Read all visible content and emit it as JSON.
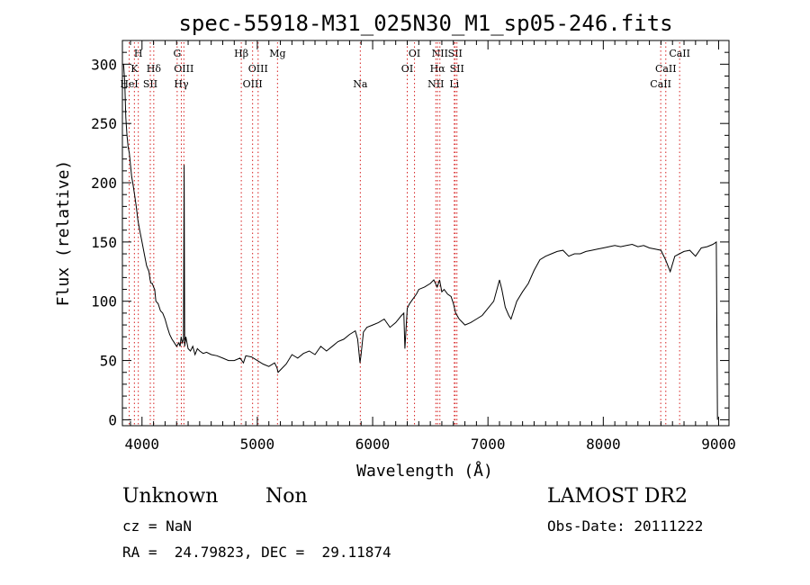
{
  "chart_data": {
    "type": "line",
    "title": "spec-55918-M31_025N30_M1_sp05-246.fits",
    "xlabel": "Wavelength (Å)",
    "ylabel": "Flux (relative)",
    "xlim": [
      3830,
      9090
    ],
    "ylim": [
      -5,
      320
    ],
    "xticks": [
      4000,
      5000,
      6000,
      7000,
      8000,
      9000
    ],
    "yticks": [
      0,
      50,
      100,
      150,
      200,
      250,
      300
    ],
    "grid": false,
    "series": [
      {
        "x": [
          3840,
          3850,
          3860,
          3870,
          3880,
          3890,
          3900,
          3910,
          3920,
          3935,
          3950,
          3965,
          3980,
          4000,
          4020,
          4040,
          4060,
          4070,
          4080,
          4090,
          4100,
          4110,
          4120,
          4140,
          4160,
          4180,
          4200,
          4220,
          4240,
          4260,
          4280,
          4300,
          4320,
          4330,
          4340,
          4350,
          4360,
          4365,
          4370,
          4380,
          4400,
          4420,
          4440,
          4460,
          4480,
          4500,
          4530,
          4560,
          4600,
          4650,
          4700,
          4750,
          4800,
          4850,
          4880,
          4900,
          4950,
          5000,
          5050,
          5100,
          5150,
          5170,
          5180,
          5200,
          5250,
          5300,
          5350,
          5400,
          5450,
          5500,
          5550,
          5600,
          5650,
          5700,
          5750,
          5800,
          5850,
          5870,
          5890,
          5900,
          5920,
          5950,
          6000,
          6050,
          6100,
          6150,
          6200,
          6250,
          6270,
          6280,
          6300,
          6320,
          6350,
          6380,
          6400,
          6450,
          6500,
          6530,
          6560,
          6580,
          6600,
          6620,
          6650,
          6680,
          6700,
          6720,
          6750,
          6780,
          6800,
          6850,
          6900,
          6950,
          7000,
          7050,
          7100,
          7120,
          7150,
          7180,
          7200,
          7250,
          7300,
          7350,
          7400,
          7450,
          7500,
          7550,
          7600,
          7650,
          7700,
          7750,
          7800,
          7850,
          7900,
          7950,
          8000,
          8050,
          8100,
          8150,
          8200,
          8250,
          8300,
          8350,
          8400,
          8450,
          8500,
          8540,
          8580,
          8620,
          8660,
          8700,
          8750,
          8800,
          8850,
          8900,
          8950,
          8980,
          8990
        ],
        "y": [
          300,
          285,
          255,
          240,
          230,
          225,
          215,
          205,
          200,
          190,
          180,
          168,
          160,
          150,
          140,
          130,
          125,
          118,
          115,
          115,
          112,
          110,
          100,
          98,
          92,
          90,
          85,
          78,
          72,
          68,
          65,
          62,
          65,
          62,
          70,
          65,
          68,
          215,
          62,
          70,
          60,
          58,
          62,
          55,
          60,
          58,
          56,
          57,
          55,
          54,
          52,
          50,
          50,
          52,
          48,
          54,
          53,
          50,
          47,
          45,
          48,
          44,
          40,
          42,
          47,
          55,
          52,
          56,
          58,
          55,
          62,
          58,
          62,
          66,
          68,
          72,
          75,
          68,
          48,
          55,
          74,
          78,
          80,
          82,
          85,
          78,
          82,
          88,
          90,
          60,
          94,
          98,
          102,
          106,
          110,
          112,
          115,
          118,
          112,
          118,
          108,
          110,
          106,
          104,
          98,
          90,
          85,
          82,
          80,
          82,
          85,
          88,
          94,
          100,
          118,
          110,
          95,
          88,
          85,
          100,
          108,
          115,
          126,
          135,
          138,
          140,
          142,
          143,
          138,
          140,
          140,
          142,
          143,
          144,
          145,
          146,
          147,
          146,
          147,
          148,
          146,
          147,
          145,
          144,
          143,
          135,
          125,
          138,
          140,
          142,
          143,
          138,
          145,
          146,
          148,
          150,
          0
        ]
      }
    ],
    "line_markers": [
      {
        "label": "HeI",
        "x": 3889,
        "row": 3
      },
      {
        "label": "K",
        "x": 3934,
        "row": 2
      },
      {
        "label": "H",
        "x": 3968,
        "row": 1
      },
      {
        "label": "Hδ",
        "x": 4102,
        "row": 2
      },
      {
        "label": "SII",
        "x": 4072,
        "row": 3
      },
      {
        "label": "G",
        "x": 4305,
        "row": 1
      },
      {
        "label": "OIII",
        "x": 4363,
        "row": 2
      },
      {
        "label": "Hγ",
        "x": 4341,
        "row": 3
      },
      {
        "label": "Hβ",
        "x": 4861,
        "row": 1
      },
      {
        "label": "OIII",
        "x": 5007,
        "row": 2
      },
      {
        "label": "OIII",
        "x": 4959,
        "row": 3
      },
      {
        "label": "Mg",
        "x": 5175,
        "row": 1
      },
      {
        "label": "Na",
        "x": 5893,
        "row": 3
      },
      {
        "label": "OI",
        "x": 6363,
        "row": 1
      },
      {
        "label": "OI",
        "x": 6300,
        "row": 2
      },
      {
        "label": "NII",
        "x": 6583,
        "row": 1
      },
      {
        "label": "SII",
        "x": 6716,
        "row": 1
      },
      {
        "label": "Hα",
        "x": 6563,
        "row": 2
      },
      {
        "label": "SII",
        "x": 6731,
        "row": 2
      },
      {
        "label": "NII",
        "x": 6548,
        "row": 3
      },
      {
        "label": "Li",
        "x": 6708,
        "row": 3
      },
      {
        "label": "CaII",
        "x": 8662,
        "row": 1
      },
      {
        "label": "CaII",
        "x": 8542,
        "row": 2
      },
      {
        "label": "CaII",
        "x": 8498,
        "row": 3
      }
    ]
  },
  "info": {
    "object_class": "Unknown",
    "object_subclass": "Non",
    "release": "LAMOST DR2",
    "cz": "cz = NaN",
    "obs_date": "Obs-Date: 20111222",
    "coords": "RA =  24.79823, DEC =  29.11874"
  }
}
